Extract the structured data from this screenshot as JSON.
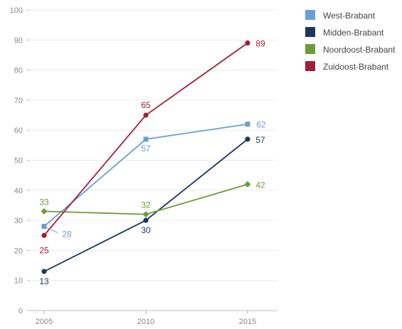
{
  "chart_data": {
    "type": "line",
    "x": [
      "2005",
      "2010",
      "2015"
    ],
    "ylim": [
      0,
      100
    ],
    "yticks": [
      "0",
      "10",
      "20",
      "30",
      "40",
      "50",
      "60",
      "70",
      "80",
      "90",
      "100"
    ],
    "grid": true,
    "legend_position": "top-right",
    "series": [
      {
        "name": "West-Brabant",
        "color": "#6a9fd4",
        "marker": "square",
        "values": [
          28,
          57,
          62
        ],
        "labels": [
          "28",
          "57",
          "62"
        ]
      },
      {
        "name": "Midden-Brabant",
        "color": "#1e355e",
        "marker": "circle",
        "values": [
          13,
          30,
          57
        ],
        "labels": [
          "13",
          "30",
          "57"
        ]
      },
      {
        "name": "Noordoost-Brabant",
        "color": "#6e9a3c",
        "marker": "diamond",
        "values": [
          33,
          32,
          42
        ],
        "labels": [
          "33",
          "32",
          "42"
        ]
      },
      {
        "name": "Zuidoost-Brabant",
        "color": "#a0203c",
        "marker": "circle",
        "values": [
          25,
          65,
          89
        ],
        "labels": [
          "25",
          "65",
          "89"
        ]
      }
    ]
  }
}
